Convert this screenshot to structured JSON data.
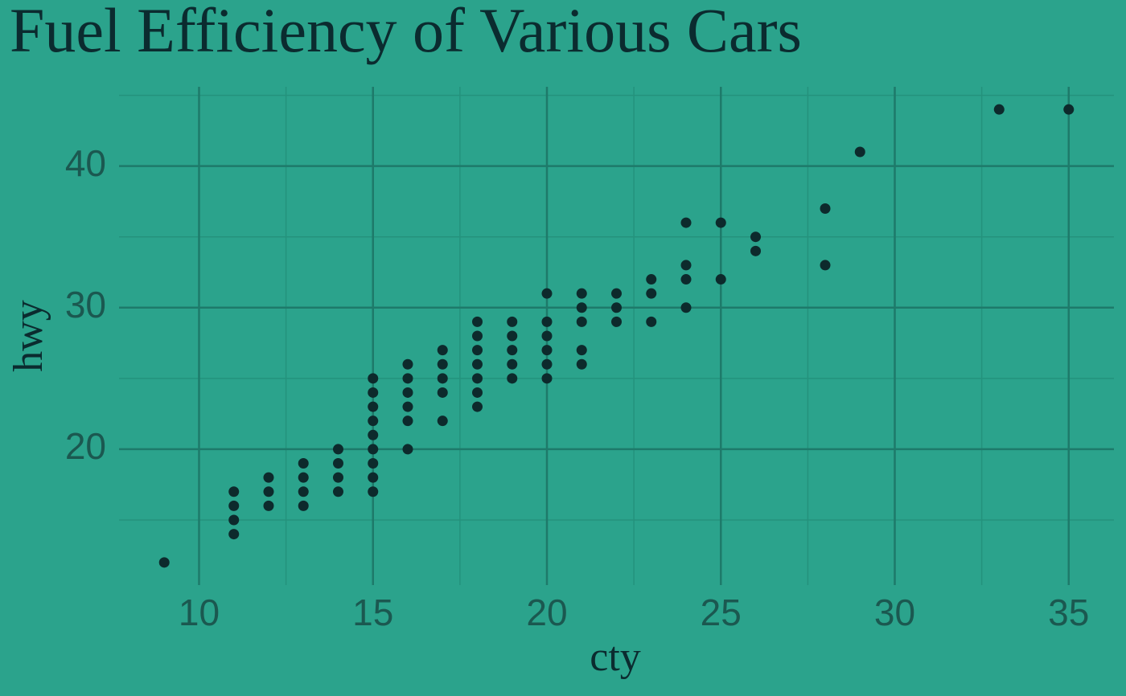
{
  "chart_data": {
    "type": "scatter",
    "title": "Fuel Efficiency of Various Cars",
    "x_label": "cty",
    "y_label": "hwy",
    "color": "#0d2a2c",
    "x": [
      9,
      11,
      11,
      11,
      11,
      12,
      12,
      12,
      13,
      13,
      13,
      13,
      14,
      14,
      14,
      14,
      15,
      15,
      15,
      15,
      15,
      15,
      15,
      15,
      15,
      16,
      16,
      16,
      16,
      16,
      16,
      17,
      17,
      17,
      17,
      17,
      18,
      18,
      18,
      18,
      18,
      18,
      18,
      19,
      19,
      19,
      19,
      19,
      20,
      20,
      20,
      20,
      20,
      20,
      21,
      21,
      21,
      21,
      21,
      22,
      22,
      22,
      23,
      23,
      23,
      24,
      24,
      24,
      24,
      25,
      25,
      26,
      26,
      28,
      28,
      29,
      33,
      35
    ],
    "values": [
      12,
      17,
      16,
      15,
      14,
      18,
      17,
      16,
      19,
      18,
      17,
      16,
      20,
      19,
      18,
      17,
      25,
      24,
      23,
      22,
      21,
      20,
      19,
      18,
      17,
      26,
      25,
      24,
      23,
      22,
      20,
      27,
      26,
      25,
      24,
      22,
      29,
      28,
      27,
      26,
      25,
      24,
      23,
      29,
      28,
      27,
      26,
      25,
      31,
      29,
      28,
      27,
      26,
      25,
      31,
      30,
      29,
      27,
      26,
      31,
      30,
      29,
      32,
      31,
      29,
      36,
      33,
      32,
      30,
      36,
      32,
      35,
      34,
      37,
      33,
      41,
      44,
      44
    ],
    "xlim": [
      7.7,
      36.3
    ],
    "ylim": [
      10.4,
      45.6
    ],
    "xticks": [
      10,
      15,
      20,
      25,
      30,
      35
    ],
    "yticks": [
      20,
      30,
      40
    ],
    "x_minor_ticks": [
      12.5,
      17.5,
      22.5,
      27.5,
      32.5
    ],
    "y_minor_ticks": [
      15,
      25,
      35,
      45
    ],
    "grid": true
  }
}
